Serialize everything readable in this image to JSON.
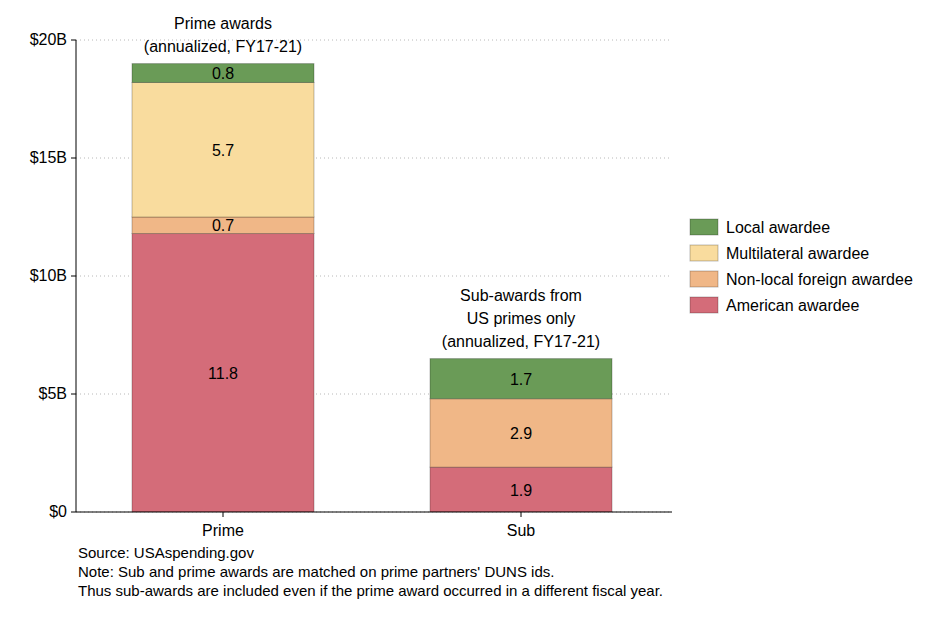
{
  "chart_data": {
    "type": "bar",
    "stacked": true,
    "data_labels": true,
    "grid": true,
    "legend": "right",
    "categories": [
      "Prime",
      "Sub"
    ],
    "series": [
      {
        "name": "American awardee",
        "color": "#d46c79",
        "values": [
          11.8,
          1.9
        ]
      },
      {
        "name": "Non-local foreign awardee",
        "color": "#f0b787",
        "values": [
          0.7,
          2.9
        ]
      },
      {
        "name": "Multilateral awardee",
        "color": "#f9dc9e",
        "values": [
          5.7,
          null
        ]
      },
      {
        "name": "Local awardee",
        "color": "#6a9b57",
        "values": [
          0.8,
          1.7
        ]
      }
    ],
    "ylim": [
      0,
      20
    ],
    "yticks": [
      {
        "value": 0,
        "label": "$0"
      },
      {
        "value": 5,
        "label": "$5B"
      },
      {
        "value": 10,
        "label": "$10B"
      },
      {
        "value": 15,
        "label": "$15B"
      },
      {
        "value": 20,
        "label": "$20B"
      }
    ],
    "annotations": [
      {
        "category": "Prime",
        "text": [
          "Prime awards",
          "(annualized, FY17-21)"
        ]
      },
      {
        "category": "Sub",
        "text": [
          "Sub-awards from",
          "US primes only",
          "(annualized, FY17-21)"
        ]
      }
    ],
    "notes": [
      "Source: USAspending.gov",
      "Note: Sub and prime awards are matched on prime partners' DUNS ids.",
      "Thus sub-awards are included even if the prime award occurred in a different fiscal year."
    ]
  }
}
